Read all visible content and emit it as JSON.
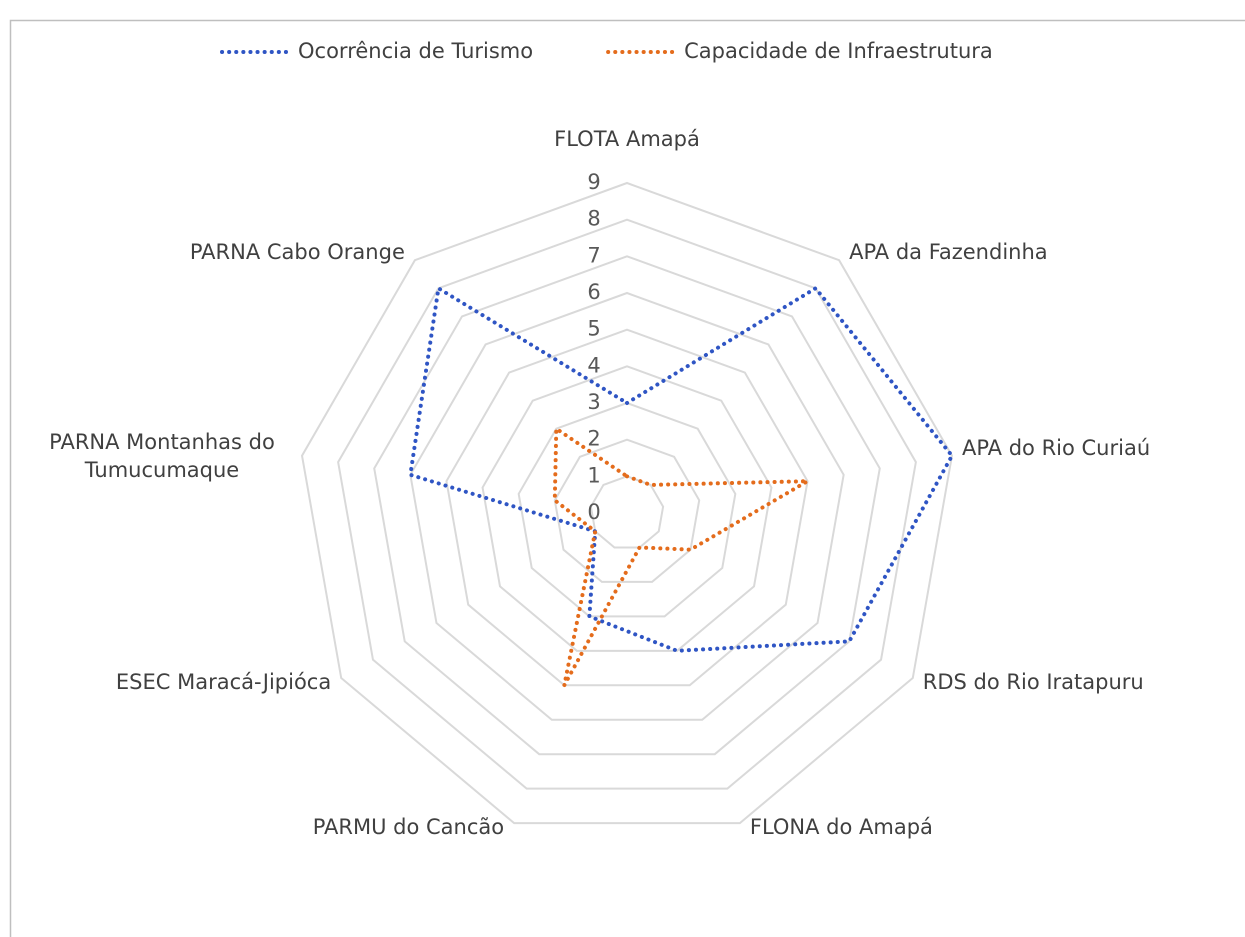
{
  "chart_data": {
    "type": "radar",
    "categories": [
      "FLOTA Amapá",
      "APA da Fazendinha",
      "APA do Rio Curiaú",
      "RDS do Rio Iratapuru",
      "FLONA do Amapá",
      "PARMU do Cancão",
      "ESEC Maracá-Jipióca",
      "PARNA Montanhas do Tumucumaque",
      "PARNA Cabo Orange"
    ],
    "series": [
      {
        "name": "Ocorrência de Turismo",
        "color": "#2f55c4",
        "values": [
          3,
          8,
          9,
          7,
          4,
          3,
          1,
          6,
          8
        ]
      },
      {
        "name": "Capacidade de Infraestrutura",
        "color": "#e46c1c",
        "values": [
          1,
          1,
          5,
          2,
          1,
          5,
          1,
          2,
          3
        ]
      }
    ],
    "ylim": [
      0,
      9
    ],
    "yticks": [
      0,
      1,
      2,
      3,
      4,
      5,
      6,
      7,
      8,
      9
    ],
    "grid": true,
    "legend": "top"
  }
}
